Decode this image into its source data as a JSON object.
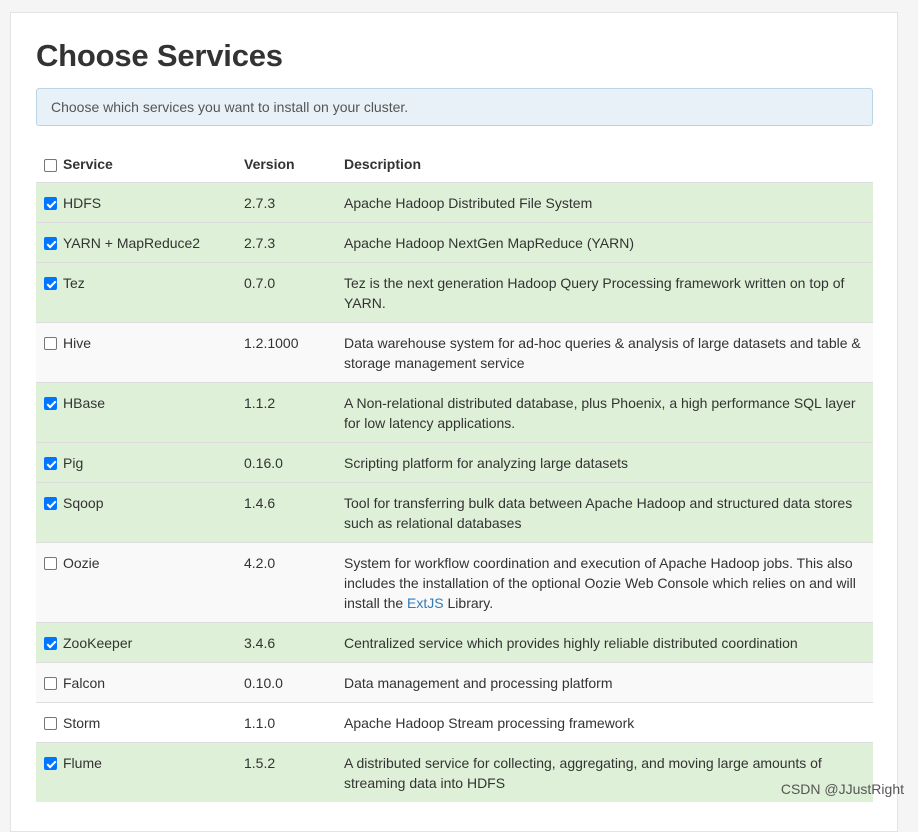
{
  "page": {
    "title": "Choose Services",
    "info": "Choose which services you want to install on your cluster."
  },
  "table": {
    "headers": {
      "service": "Service",
      "version": "Version",
      "description": "Description"
    },
    "rows": [
      {
        "name": "HDFS",
        "version": "2.7.3",
        "description": "Apache Hadoop Distributed File System",
        "checked": true
      },
      {
        "name": "YARN + MapReduce2",
        "version": "2.7.3",
        "description": "Apache Hadoop NextGen MapReduce (YARN)",
        "checked": true
      },
      {
        "name": "Tez",
        "version": "0.7.0",
        "description": "Tez is the next generation Hadoop Query Processing framework written on top of YARN.",
        "checked": true
      },
      {
        "name": "Hive",
        "version": "1.2.1000",
        "description": "Data warehouse system for ad-hoc queries & analysis of large datasets and table & storage management service",
        "checked": false
      },
      {
        "name": "HBase",
        "version": "1.1.2",
        "description": "A Non-relational distributed database, plus Phoenix, a high performance SQL layer for low latency applications.",
        "checked": true
      },
      {
        "name": "Pig",
        "version": "0.16.0",
        "description": "Scripting platform for analyzing large datasets",
        "checked": true
      },
      {
        "name": "Sqoop",
        "version": "1.4.6",
        "description": "Tool for transferring bulk data between Apache Hadoop and structured data stores such as relational databases",
        "checked": true
      },
      {
        "name": "Oozie",
        "version": "4.2.0",
        "description": "System for workflow coordination and execution of Apache Hadoop jobs. This also includes the installation of the optional Oozie Web Console which relies on and will install the",
        "link": "ExtJS",
        "description_after": " Library.",
        "checked": false
      },
      {
        "name": "ZooKeeper",
        "version": "3.4.6",
        "description": "Centralized service which provides highly reliable distributed coordination",
        "checked": true
      },
      {
        "name": "Falcon",
        "version": "0.10.0",
        "description": "Data management and processing platform",
        "checked": false
      },
      {
        "name": "Storm",
        "version": "1.1.0",
        "description": "Apache Hadoop Stream processing framework",
        "checked": false
      },
      {
        "name": "Flume",
        "version": "1.5.2",
        "description": "A distributed service for collecting, aggregating, and moving large amounts of streaming data into HDFS",
        "checked": true
      }
    ]
  },
  "watermark": "CSDN @JJustRight",
  "colors": {
    "selected_row": "#dff0d8",
    "checkbox": "#0075ff",
    "link": "#337ab7"
  }
}
